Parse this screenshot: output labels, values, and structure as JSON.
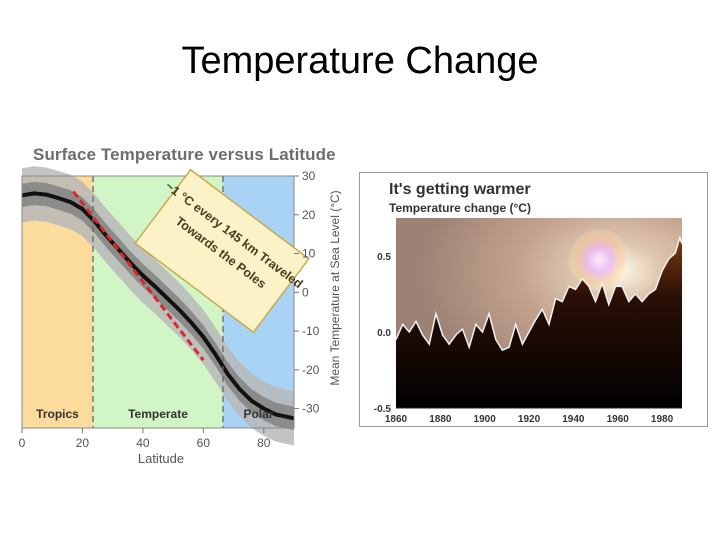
{
  "slide": {
    "title": "Temperature Change"
  },
  "chart_data": [
    {
      "type": "line",
      "title": "Surface Temperature versus Latitude",
      "xlabel": "Latitude",
      "ylabel": "Mean Temperature at Sea Level (°C)",
      "xlim": [
        0,
        90
      ],
      "ylim": [
        -35,
        30
      ],
      "x_ticks": [
        0,
        20,
        40,
        60,
        80
      ],
      "y_ticks": [
        30,
        20,
        10,
        0,
        -10,
        -20,
        -30
      ],
      "zones": [
        {
          "label": "Tropics",
          "from": 0,
          "to": 23.5,
          "color": "#fbdc9c"
        },
        {
          "label": "Temperate",
          "from": 23.5,
          "to": 66.5,
          "color": "#d2f5c6"
        },
        {
          "label": "Polar",
          "from": 66.5,
          "to": 90,
          "color": "#a8d3f5"
        }
      ],
      "series": [
        {
          "x": [
            0,
            4,
            8,
            12,
            16,
            20,
            24,
            28,
            32,
            36,
            40,
            44,
            48,
            52,
            56,
            60,
            64,
            68,
            72,
            76,
            80,
            84,
            88,
            90
          ],
          "y": [
            25,
            25.5,
            25.2,
            24.3,
            23.3,
            21.5,
            18.3,
            14.5,
            11,
            7.5,
            4.3,
            1.5,
            -1.5,
            -4.5,
            -7.8,
            -11.5,
            -16,
            -21,
            -25,
            -28,
            -30,
            -31.5,
            -32.2,
            -32.5
          ]
        },
        {
          "style": "dashed",
          "x": [
            17,
            60
          ],
          "y": [
            26,
            -17.5
          ]
        }
      ],
      "band_inner": 3,
      "band_outer": 7,
      "annotation": {
        "lines": [
          "~1 °C every 145 km Traveled",
          "Towards the Poles"
        ]
      }
    },
    {
      "type": "area",
      "title": "It's getting warmer",
      "subtitle": "Temperature change (°C)",
      "x_ticks": [
        1860,
        1880,
        1900,
        1920,
        1940,
        1960,
        1980
      ],
      "y_ticks": [
        0.5,
        0.0,
        -0.5
      ],
      "xlim": [
        1860,
        1989
      ],
      "ylim": [
        -0.5,
        0.75
      ],
      "series": [
        {
          "x": [
            1860,
            1863,
            1866,
            1869,
            1872,
            1875,
            1878,
            1881,
            1884,
            1887,
            1890,
            1893,
            1896,
            1899,
            1902,
            1905,
            1908,
            1911,
            1914,
            1917,
            1920,
            1923,
            1926,
            1929,
            1932,
            1935,
            1938,
            1941,
            1944,
            1947,
            1950,
            1953,
            1956,
            1959,
            1962,
            1965,
            1968,
            1971,
            1974,
            1977,
            1980,
            1983,
            1986,
            1988,
            1989
          ],
          "y": [
            -0.05,
            0.05,
            0.0,
            0.07,
            -0.02,
            -0.08,
            0.12,
            -0.02,
            -0.08,
            -0.02,
            0.02,
            -0.1,
            0.05,
            0.0,
            0.12,
            -0.05,
            -0.12,
            -0.1,
            0.05,
            -0.08,
            0.0,
            0.08,
            0.15,
            0.05,
            0.22,
            0.2,
            0.3,
            0.28,
            0.35,
            0.3,
            0.2,
            0.32,
            0.18,
            0.3,
            0.3,
            0.2,
            0.25,
            0.2,
            0.25,
            0.28,
            0.4,
            0.48,
            0.52,
            0.62,
            0.58
          ]
        }
      ]
    }
  ]
}
